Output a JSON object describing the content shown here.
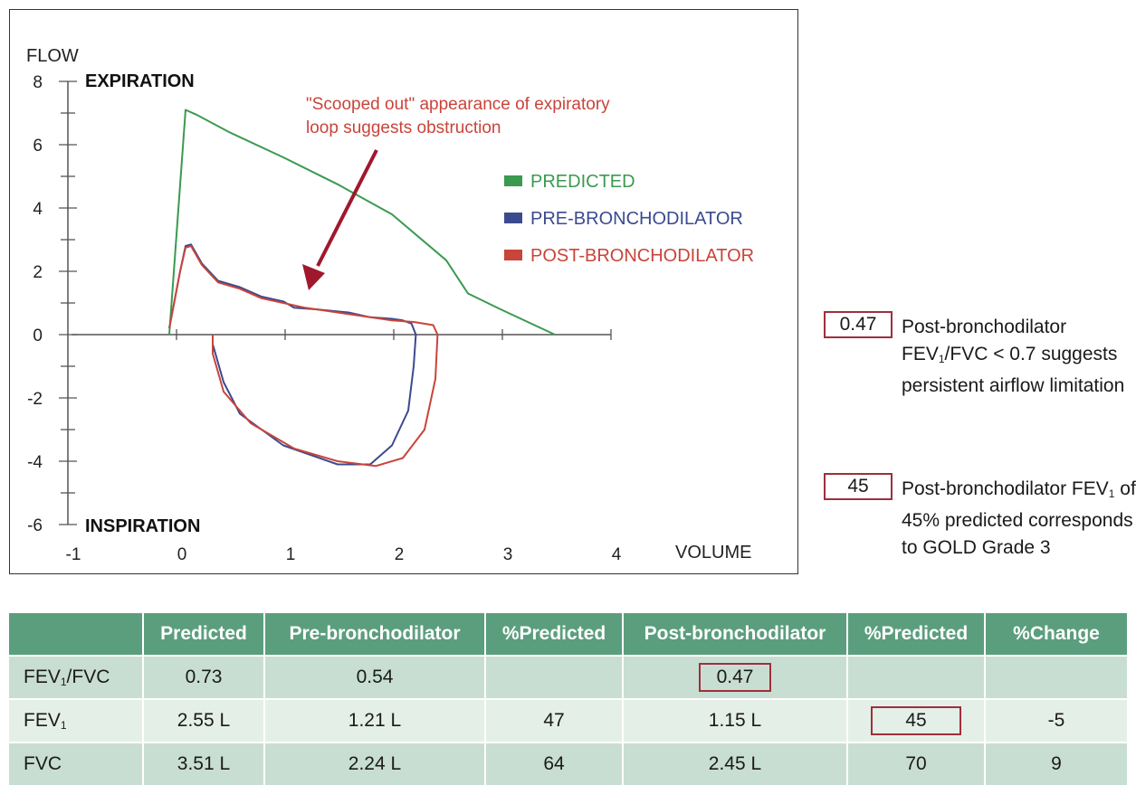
{
  "chart_data": {
    "type": "line",
    "ylabel": "FLOW",
    "xlabel": "VOLUME",
    "xlim": [
      -1,
      4
    ],
    "ylim": [
      -6,
      8
    ],
    "x_ticks": [
      -1,
      0,
      1,
      2,
      3,
      4
    ],
    "y_ticks": [
      8,
      6,
      4,
      2,
      0,
      -2,
      -4,
      -6
    ],
    "region_labels": {
      "top": "EXPIRATION",
      "bottom": "INSPIRATION"
    },
    "annotation": {
      "line1": "\"Scooped out\" appearance of expiratory",
      "line2": "loop suggests obstruction"
    },
    "legend_position": "right",
    "series": [
      {
        "name": "PREDICTED",
        "color": "#3a9a4f",
        "points": [
          [
            -0.05,
            0
          ],
          [
            0.1,
            7.1
          ],
          [
            0.2,
            6.95
          ],
          [
            0.5,
            6.4
          ],
          [
            1.0,
            5.6
          ],
          [
            1.5,
            4.75
          ],
          [
            2.0,
            3.8
          ],
          [
            2.5,
            2.35
          ],
          [
            2.7,
            1.3
          ],
          [
            3.0,
            0.8
          ],
          [
            3.5,
            0
          ]
        ]
      },
      {
        "name": "PRE-BRONCHODILATOR",
        "color": "#3b4a8f",
        "points": [
          [
            -0.05,
            0.2
          ],
          [
            0.05,
            2.0
          ],
          [
            0.1,
            2.8
          ],
          [
            0.15,
            2.85
          ],
          [
            0.25,
            2.25
          ],
          [
            0.4,
            1.7
          ],
          [
            0.6,
            1.5
          ],
          [
            0.8,
            1.2
          ],
          [
            1.0,
            1.05
          ],
          [
            1.1,
            0.85
          ],
          [
            1.3,
            0.8
          ],
          [
            1.6,
            0.7
          ],
          [
            1.8,
            0.55
          ],
          [
            2.0,
            0.5
          ],
          [
            2.1,
            0.45
          ],
          [
            2.18,
            0.35
          ],
          [
            2.22,
            0
          ],
          [
            2.2,
            -1.0
          ],
          [
            2.15,
            -2.4
          ],
          [
            2.0,
            -3.5
          ],
          [
            1.8,
            -4.1
          ],
          [
            1.5,
            -4.1
          ],
          [
            1.0,
            -3.5
          ],
          [
            0.6,
            -2.5
          ],
          [
            0.45,
            -1.5
          ],
          [
            0.35,
            -0.3
          ],
          [
            0.35,
            0
          ]
        ]
      },
      {
        "name": "POST-BRONCHODILATOR",
        "color": "#c9443a",
        "points": [
          [
            -0.05,
            0.2
          ],
          [
            0.05,
            2.0
          ],
          [
            0.1,
            2.75
          ],
          [
            0.15,
            2.8
          ],
          [
            0.25,
            2.2
          ],
          [
            0.4,
            1.65
          ],
          [
            0.6,
            1.45
          ],
          [
            0.8,
            1.15
          ],
          [
            1.0,
            1.0
          ],
          [
            1.2,
            0.85
          ],
          [
            1.4,
            0.75
          ],
          [
            1.7,
            0.6
          ],
          [
            2.0,
            0.45
          ],
          [
            2.2,
            0.4
          ],
          [
            2.38,
            0.3
          ],
          [
            2.42,
            0
          ],
          [
            2.4,
            -1.4
          ],
          [
            2.3,
            -3.0
          ],
          [
            2.1,
            -3.9
          ],
          [
            1.85,
            -4.15
          ],
          [
            1.5,
            -4.0
          ],
          [
            1.1,
            -3.6
          ],
          [
            0.7,
            -2.8
          ],
          [
            0.45,
            -1.8
          ],
          [
            0.35,
            -0.6
          ],
          [
            0.35,
            0
          ]
        ]
      }
    ]
  },
  "notes": [
    {
      "value": "0.47",
      "text_before": "Post-bronchodilator FEV",
      "sub": "1",
      "text_after": "/FVC < 0.7 suggests persistent airflow limitation"
    },
    {
      "value": "45",
      "text_before": "Post-bronchodilator FEV",
      "sub": "1",
      "text_after": " of 45% predicted corresponds to GOLD Grade 3"
    }
  ],
  "table": {
    "headers": [
      "",
      "Predicted",
      "Pre-bronchodilator",
      "%Predicted",
      "Post-bronchodilator",
      "%Predicted",
      "%Change"
    ],
    "rows": [
      {
        "label": "FEV",
        "sub": "1",
        "label_after": "/FVC",
        "cells": [
          "0.73",
          "0.54",
          "",
          "0.47",
          "",
          ""
        ]
      },
      {
        "label": "FEV",
        "sub": "1",
        "label_after": "",
        "cells": [
          "2.55 L",
          "1.21 L",
          "47",
          "1.15 L",
          "45",
          "-5"
        ]
      },
      {
        "label": "FVC",
        "sub": "",
        "label_after": "",
        "cells": [
          "3.51 L",
          "2.24 L",
          "64",
          "2.45 L",
          "70",
          "9"
        ]
      }
    ]
  }
}
